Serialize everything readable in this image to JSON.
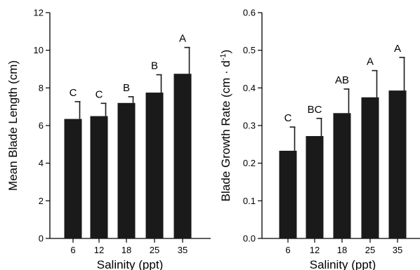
{
  "chart_data": [
    {
      "type": "bar",
      "categories": [
        "6",
        "12",
        "18",
        "25",
        "35"
      ],
      "values": [
        6.35,
        6.5,
        7.2,
        7.75,
        8.75
      ],
      "errors": [
        0.92,
        0.68,
        0.33,
        0.95,
        1.4
      ],
      "significance": [
        "C",
        "C",
        "B",
        "B",
        "A"
      ],
      "xlabel": "Salinity (ppt)",
      "ylabel": "Mean Blade Length (cm)",
      "ylim": [
        0,
        12
      ],
      "yticks": [
        0,
        2,
        4,
        6,
        8,
        10,
        12
      ],
      "ytick_labels": [
        "0",
        "2",
        "4",
        "6",
        "8",
        "10",
        "12"
      ],
      "grid": false
    },
    {
      "type": "bar",
      "categories": [
        "6",
        "12",
        "18",
        "25",
        "35"
      ],
      "values": [
        0.233,
        0.272,
        0.333,
        0.375,
        0.393
      ],
      "errors": [
        0.063,
        0.047,
        0.064,
        0.071,
        0.088
      ],
      "significance": [
        "C",
        "BC",
        "AB",
        "A",
        "A"
      ],
      "xlabel": "Salinity (ppt)",
      "ylabel_main": "Blade Growth Rate (cm · d",
      "ylabel_sup": "-1",
      "ylabel_end": ")",
      "ylim": [
        0,
        0.6
      ],
      "yticks": [
        0,
        0.1,
        0.2,
        0.3,
        0.4,
        0.5,
        0.6
      ],
      "ytick_labels": [
        "0.0",
        "0.1",
        "0.2",
        "0.3",
        "0.4",
        "0.5",
        "0.6"
      ],
      "grid": false
    }
  ]
}
